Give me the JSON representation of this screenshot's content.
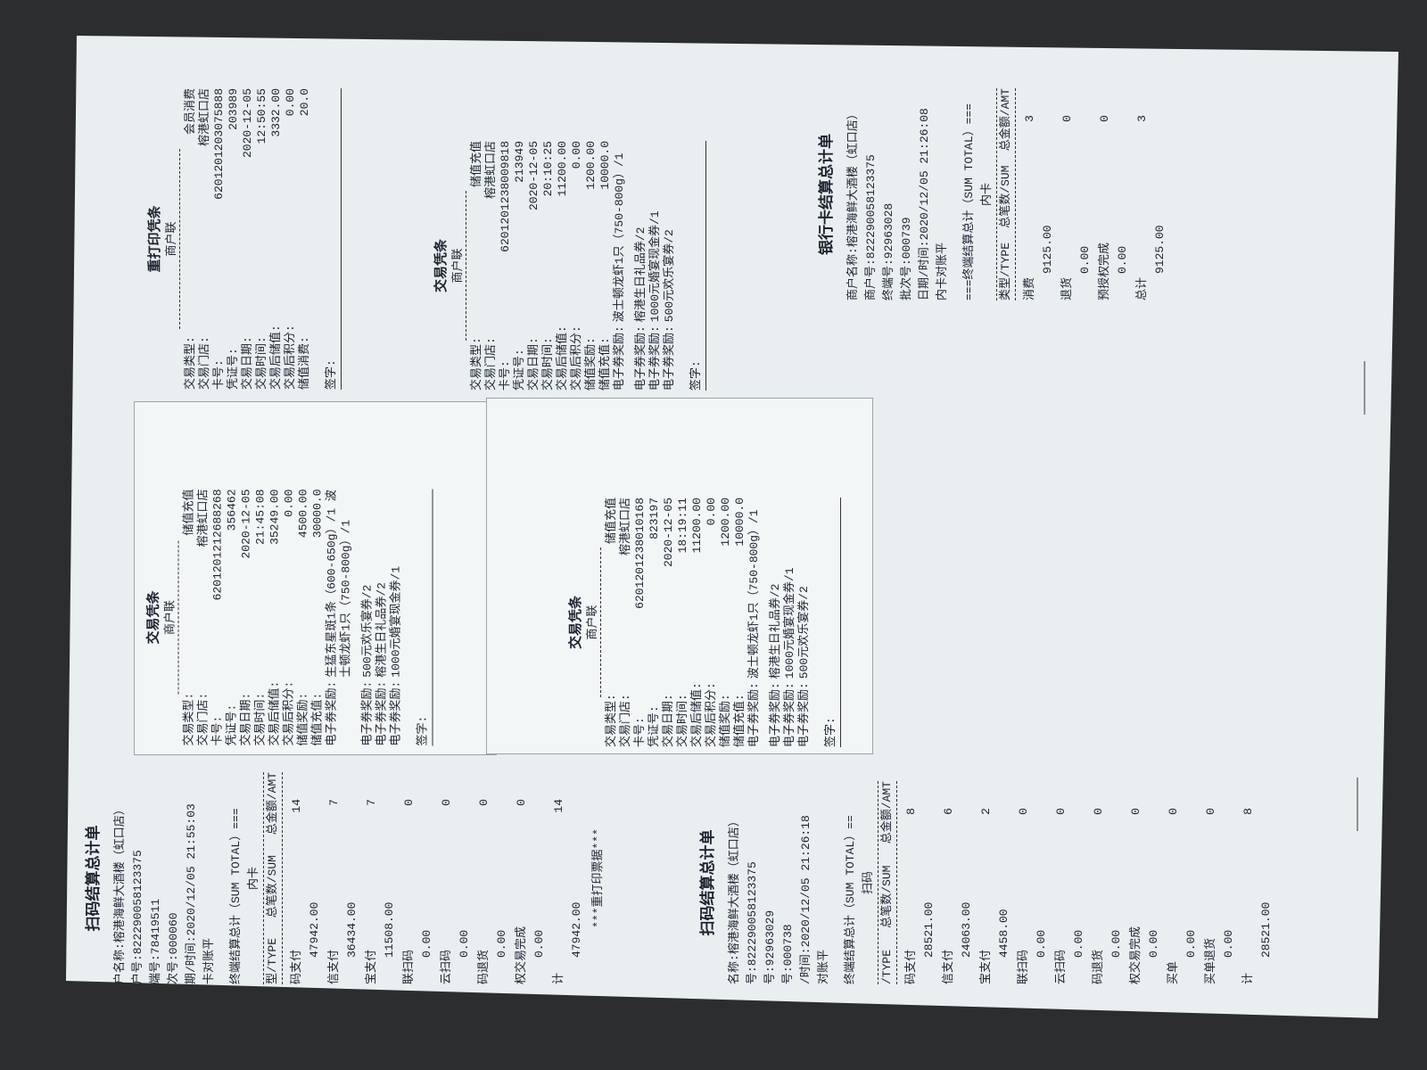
{
  "vouchers": [
    {
      "title": "重打印凭条",
      "copy": "商户联",
      "fields": [
        {
          "label": "交易类型:",
          "value": "会员消费"
        },
        {
          "label": "交易门店:",
          "value": "榕港虹口店"
        },
        {
          "label": "卡号:",
          "value": "6201201203075888"
        },
        {
          "label": "凭证号:",
          "value": "203989"
        },
        {
          "label": "交易日期:",
          "value": "2020-12-05"
        },
        {
          "label": "交易时间:",
          "value": "12:50:55"
        },
        {
          "label": "交易后储值:",
          "value": "3332.00"
        },
        {
          "label": "交易后积分:",
          "value": "0.00"
        },
        {
          "label": "储值消费:",
          "value": "20.0"
        }
      ],
      "rewards": [],
      "sign": "签字:"
    },
    {
      "title": "交易凭条",
      "copy": "商户联",
      "fields": [
        {
          "label": "交易类型:",
          "value": "储值充值"
        },
        {
          "label": "交易门店:",
          "value": "榕港虹口店"
        },
        {
          "label": "卡号:",
          "value": "6201201238009818"
        },
        {
          "label": "凭证号:",
          "value": "213949"
        },
        {
          "label": "交易日期:",
          "value": "2020-12-05"
        },
        {
          "label": "交易时间:",
          "value": "20:10:25"
        },
        {
          "label": "交易后储值:",
          "value": "11200.00"
        },
        {
          "label": "交易后积分:",
          "value": "0.00"
        },
        {
          "label": "储值奖励:",
          "value": "1200.00"
        },
        {
          "label": "储值充值:",
          "value": "10000.0"
        }
      ],
      "rewards": [
        {
          "label": "电子券奖励:",
          "value": "波士顿龙虾1只（750-800g）/1"
        },
        {
          "label": "电子券奖励:",
          "value": "榕港生日礼品券/2"
        },
        {
          "label": "电子券奖励:",
          "value": "1000元婚宴现金券/1"
        },
        {
          "label": "电子券奖励:",
          "value": "500元欢乐宴券/2"
        }
      ],
      "sign": "签字:"
    },
    {
      "title": "交易凭条",
      "copy": "商户联",
      "fields": [
        {
          "label": "交易类型:",
          "value": "储值充值"
        },
        {
          "label": "交易门店:",
          "value": "榕港虹口店"
        },
        {
          "label": "卡号:",
          "value": "6201201212688268"
        },
        {
          "label": "凭证号:",
          "value": "356462"
        },
        {
          "label": "交易日期:",
          "value": "2020-12-05"
        },
        {
          "label": "交易时间:",
          "value": "21:45:08"
        },
        {
          "label": "交易后储值:",
          "value": "35249.00"
        },
        {
          "label": "交易后积分:",
          "value": "0.00"
        },
        {
          "label": "储值奖励:",
          "value": "4500.00"
        },
        {
          "label": "储值充值:",
          "value": "30000.0"
        }
      ],
      "rewards": [
        {
          "label": "电子券奖励:",
          "value": "生猛东星斑1条（600-650g）/1 波士顿龙虾1只（750-800g）/1"
        },
        {
          "label": "电子券奖励:",
          "value": "500元欢乐宴券/2"
        },
        {
          "label": "电子券奖励:",
          "value": "榕港生日礼品券/2"
        },
        {
          "label": "电子券奖励:",
          "value": "1000元婚宴现金券/1"
        }
      ],
      "sign": "签字:"
    },
    {
      "title": "交易凭条",
      "copy": "商户联",
      "fields": [
        {
          "label": "交易类型:",
          "value": "储值充值"
        },
        {
          "label": "交易门店:",
          "value": "榕港虹口店"
        },
        {
          "label": "卡号:",
          "value": "6201201238010168"
        },
        {
          "label": "凭证号:",
          "value": "823197"
        },
        {
          "label": "交易日期:",
          "value": "2020-12-05"
        },
        {
          "label": "交易时间:",
          "value": "18:19:11"
        },
        {
          "label": "交易后储值:",
          "value": "11200.00"
        },
        {
          "label": "交易后积分:",
          "value": "0.00"
        },
        {
          "label": "储值奖励:",
          "value": "1200.00"
        },
        {
          "label": "储值充值:",
          "value": "10000.0"
        }
      ],
      "rewards": [
        {
          "label": "电子券奖励:",
          "value": "波士顿龙虾1只（750-800g）/1"
        },
        {
          "label": "电子券奖励:",
          "value": "榕港生日礼品券/2"
        },
        {
          "label": "电子券奖励:",
          "value": "1000元婚宴现金券/1"
        },
        {
          "label": "电子券奖励:",
          "value": "500元欢乐宴券/2"
        }
      ],
      "sign": "签字:"
    }
  ],
  "settlements": [
    {
      "title": "银行卡结算总计单",
      "info": [
        "商户名称:榕港海鲜大酒楼（虹口店）",
        "商户号:822290058123375",
        "终端号:92963028",
        "批次号:000739",
        "日期/时间:2020/12/05 21:26:08",
        "内卡对账平"
      ],
      "section": "===终端结算总计（SUM TOTAL）===",
      "subsection": "内卡",
      "header": [
        "类型/TYPE",
        "总笔数/SUM",
        "总金额/AMT"
      ],
      "rows": [
        {
          "type": "消费",
          "count": 3,
          "amount": "9125.00"
        },
        {
          "type": "退货",
          "count": 0,
          "amount": "0.00"
        },
        {
          "type": "预授权完成",
          "count": 0,
          "amount": "0.00"
        },
        {
          "type": "总计",
          "count": 3,
          "amount": "9125.00"
        }
      ],
      "footer": null
    },
    {
      "title": "扫码结算总计单",
      "info": [
        "户名称:榕港海鲜大酒楼（虹口店）",
        "户号:822290058123375",
        "端号:78419511",
        "次号:000060",
        "期/时间:2020/12/05 21:55:03",
        "卡对账平"
      ],
      "section": "终端结算总计（SUM TOTAL）===",
      "subsection": "内卡",
      "header": [
        "型/TYPE",
        "总笔数/SUM",
        "总金额/AMT"
      ],
      "rows": [
        {
          "type": "码支付",
          "count": 14,
          "amount": "47942.00"
        },
        {
          "type": "信支付",
          "count": 7,
          "amount": "36434.00"
        },
        {
          "type": "宝支付",
          "count": 7,
          "amount": "11508.00"
        },
        {
          "type": "联扫码",
          "count": 0,
          "amount": "0.00"
        },
        {
          "type": "云扫码",
          "count": 0,
          "amount": "0.00"
        },
        {
          "type": "码退货",
          "count": 0,
          "amount": "0.00"
        },
        {
          "type": "权交易完成",
          "count": 0,
          "amount": "0.00"
        },
        {
          "type": "计",
          "count": 14,
          "amount": "47942.00"
        }
      ],
      "footer": "***重打印票据***"
    },
    {
      "title": "扫码结算总计单",
      "info": [
        "名称:榕港海鲜大酒楼（虹口店）",
        "号:822290058123375",
        "号:92963029",
        "号:000738",
        "/时间:2020/12/05 21:26:18",
        "对账平"
      ],
      "section": "终端结算总计（SUM TOTAL）==",
      "subsection": "扫码",
      "header": [
        "/TYPE",
        "总笔数/SUM",
        "总金额/AMT"
      ],
      "rows": [
        {
          "type": "码支付",
          "count": 8,
          "amount": "28521.00"
        },
        {
          "type": "信支付",
          "count": 6,
          "amount": "24063.00"
        },
        {
          "type": "宝支付",
          "count": 2,
          "amount": "4458.00"
        },
        {
          "type": "联扫码",
          "count": 0,
          "amount": "0.00"
        },
        {
          "type": "云扫码",
          "count": 0,
          "amount": "0.00"
        },
        {
          "type": "码退货",
          "count": 0,
          "amount": "0.00"
        },
        {
          "type": "权交易完成",
          "count": 0,
          "amount": "0.00"
        },
        {
          "type": "买单",
          "count": 0,
          "amount": "0.00"
        },
        {
          "type": "买单退货",
          "count": 0,
          "amount": "0.00"
        },
        {
          "type": "计",
          "count": 8,
          "amount": "28521.00"
        }
      ],
      "footer": null
    }
  ]
}
